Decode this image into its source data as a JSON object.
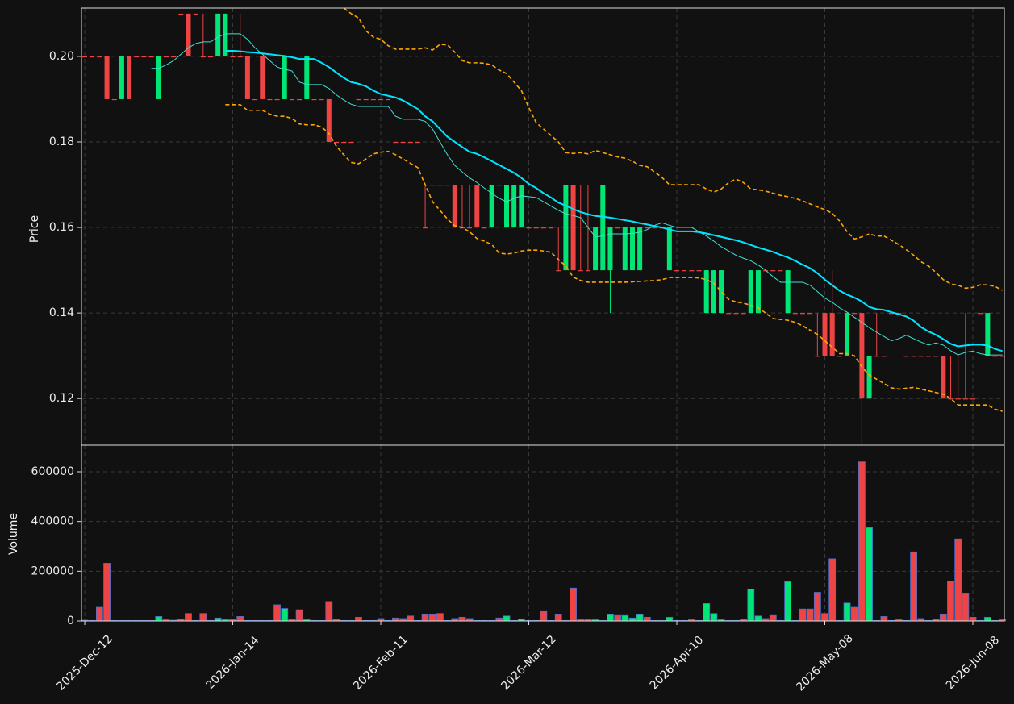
{
  "chart_data": {
    "type": "candlestick",
    "ylabel": "Price",
    "xlim": [
      -0.44,
      124.25
    ],
    "xticks": [
      {
        "value": 0,
        "label": "2025-Dec-12"
      },
      {
        "value": 20,
        "label": "2026-Jan-14"
      },
      {
        "value": 40,
        "label": "2026-Feb-11"
      },
      {
        "value": 60,
        "label": "2026-Mar-12"
      },
      {
        "value": 80,
        "label": "2026-Apr-10"
      },
      {
        "value": 100,
        "label": "2026-May-08"
      },
      {
        "value": 120,
        "label": "2026-Jun-08"
      }
    ],
    "ylim": [
      0.1091,
      0.2113
    ],
    "yticks": [
      0.12,
      0.14,
      0.16,
      0.18,
      {
        "value": 0.2,
        "label": "0.20"
      }
    ],
    "grid": true,
    "up_color": "#00e676",
    "down_color": "#ef4444",
    "open": [
      0.2,
      0.2,
      0.2,
      0.2,
      0.19,
      0.19,
      0.2,
      0.2,
      0.2,
      0.2,
      0.19,
      0.2,
      0.2,
      0.21,
      0.21,
      0.21,
      0.2,
      0.2,
      0.2,
      0.2,
      0.2,
      0.2,
      0.2,
      0.19,
      0.2,
      0.19,
      0.19,
      0.19,
      0.19,
      0.19,
      0.19,
      0.19,
      0.19,
      0.19,
      0.18,
      0.18,
      0.18,
      0.19,
      0.19,
      0.19,
      0.19,
      0.19,
      0.18,
      0.18,
      0.18,
      0.18,
      0.16,
      0.17,
      0.17,
      0.17,
      0.17,
      0.16,
      0.16,
      0.17,
      0.16,
      0.16,
      0.17,
      0.16,
      0.16,
      0.16,
      0.16,
      0.16,
      0.16,
      0.16,
      0.15,
      0.15,
      0.17,
      0.15,
      0.15,
      0.15,
      0.15,
      0.15,
      0.16,
      0.15,
      0.15,
      0.15,
      0.16,
      0.16,
      0.16,
      0.15,
      0.15,
      0.15,
      0.15,
      0.15,
      0.14,
      0.14,
      0.14,
      0.14,
      0.14,
      0.14,
      0.14,
      0.14,
      0.15,
      0.15,
      0.15,
      0.14,
      0.14,
      0.14,
      0.14,
      0.13,
      0.14,
      0.14,
      0.13,
      0.13,
      0.14,
      0.14,
      0.12,
      0.13,
      0.13,
      0.14,
      0.14,
      0.13,
      0.13,
      0.13,
      0.13,
      0.13,
      0.13,
      0.12,
      0.12,
      0.12,
      0.12,
      0.14,
      0.13,
      0.13,
      0.13
    ],
    "high": [
      0.2,
      0.2,
      0.2,
      0.2,
      0.19,
      0.2,
      0.2,
      0.2,
      0.2,
      0.2,
      0.2,
      0.2,
      0.2,
      0.21,
      0.21,
      0.21,
      0.21,
      0.2,
      0.21,
      0.21,
      0.2,
      0.21,
      0.2,
      0.19,
      0.2,
      0.19,
      0.19,
      0.2,
      0.19,
      0.19,
      0.2,
      0.19,
      0.19,
      0.19,
      0.18,
      0.18,
      0.18,
      0.19,
      0.19,
      0.19,
      0.19,
      0.19,
      0.18,
      0.18,
      0.18,
      0.18,
      0.17,
      0.17,
      0.17,
      0.17,
      0.17,
      0.17,
      0.17,
      0.17,
      0.16,
      0.17,
      0.17,
      0.17,
      0.17,
      0.17,
      0.16,
      0.16,
      0.16,
      0.16,
      0.16,
      0.17,
      0.17,
      0.17,
      0.17,
      0.16,
      0.17,
      0.16,
      0.16,
      0.16,
      0.16,
      0.16,
      0.16,
      0.16,
      0.16,
      0.16,
      0.15,
      0.15,
      0.15,
      0.15,
      0.15,
      0.15,
      0.15,
      0.14,
      0.14,
      0.14,
      0.15,
      0.15,
      0.15,
      0.15,
      0.15,
      0.15,
      0.14,
      0.14,
      0.14,
      0.14,
      0.14,
      0.15,
      0.13,
      0.14,
      0.14,
      0.14,
      0.13,
      0.14,
      0.13,
      0.14,
      0.14,
      0.13,
      0.13,
      0.13,
      0.13,
      0.13,
      0.13,
      0.13,
      0.13,
      0.14,
      0.12,
      0.14,
      0.14,
      0.13,
      0.13
    ],
    "low": [
      0.2,
      0.2,
      0.2,
      0.19,
      0.19,
      0.19,
      0.19,
      0.2,
      0.2,
      0.2,
      0.19,
      0.2,
      0.2,
      0.21,
      0.2,
      0.21,
      0.2,
      0.2,
      0.2,
      0.2,
      0.2,
      0.2,
      0.19,
      0.19,
      0.19,
      0.19,
      0.19,
      0.19,
      0.19,
      0.19,
      0.19,
      0.19,
      0.19,
      0.18,
      0.18,
      0.18,
      0.18,
      0.19,
      0.19,
      0.19,
      0.19,
      0.19,
      0.18,
      0.18,
      0.18,
      0.18,
      0.16,
      0.17,
      0.17,
      0.17,
      0.16,
      0.16,
      0.16,
      0.16,
      0.16,
      0.16,
      0.17,
      0.16,
      0.16,
      0.16,
      0.16,
      0.16,
      0.16,
      0.16,
      0.15,
      0.15,
      0.15,
      0.15,
      0.15,
      0.15,
      0.15,
      0.14,
      0.16,
      0.15,
      0.15,
      0.15,
      0.16,
      0.16,
      0.16,
      0.15,
      0.15,
      0.15,
      0.15,
      0.15,
      0.14,
      0.14,
      0.14,
      0.14,
      0.14,
      0.14,
      0.14,
      0.14,
      0.15,
      0.15,
      0.15,
      0.14,
      0.14,
      0.14,
      0.14,
      0.13,
      0.13,
      0.13,
      0.13,
      0.13,
      0.14,
      0.109,
      0.12,
      0.13,
      0.13,
      0.14,
      0.14,
      0.13,
      0.13,
      0.13,
      0.13,
      0.13,
      0.12,
      0.12,
      0.12,
      0.12,
      0.12,
      0.14,
      0.13,
      0.13,
      0.13
    ],
    "close": [
      0.2,
      0.2,
      0.2,
      0.19,
      0.19,
      0.2,
      0.19,
      0.2,
      0.2,
      0.2,
      0.2,
      0.2,
      0.2,
      0.21,
      0.2,
      0.21,
      0.2,
      0.2,
      0.21,
      0.21,
      0.2,
      0.2,
      0.19,
      0.19,
      0.19,
      0.19,
      0.19,
      0.2,
      0.19,
      0.19,
      0.2,
      0.19,
      0.19,
      0.18,
      0.18,
      0.18,
      0.18,
      0.19,
      0.19,
      0.19,
      0.19,
      0.19,
      0.18,
      0.18,
      0.18,
      0.18,
      0.16,
      0.17,
      0.17,
      0.17,
      0.16,
      0.16,
      0.16,
      0.16,
      0.16,
      0.17,
      0.17,
      0.17,
      0.17,
      0.17,
      0.16,
      0.16,
      0.16,
      0.16,
      0.15,
      0.17,
      0.15,
      0.15,
      0.15,
      0.16,
      0.17,
      0.16,
      0.16,
      0.16,
      0.16,
      0.16,
      0.16,
      0.16,
      0.16,
      0.16,
      0.15,
      0.15,
      0.15,
      0.15,
      0.15,
      0.15,
      0.15,
      0.14,
      0.14,
      0.14,
      0.15,
      0.15,
      0.15,
      0.15,
      0.15,
      0.15,
      0.14,
      0.14,
      0.14,
      0.13,
      0.13,
      0.13,
      0.13,
      0.14,
      0.14,
      0.12,
      0.13,
      0.13,
      0.13,
      0.14,
      0.14,
      0.13,
      0.13,
      0.13,
      0.13,
      0.13,
      0.12,
      0.12,
      0.12,
      0.12,
      0.12,
      0.14,
      0.14,
      0.13,
      0.13
    ],
    "lines": [
      {
        "color": "#ffa500",
        "width": 1.6,
        "linestyle": "dashed",
        "values": [
          null,
          null,
          null,
          null,
          null,
          null,
          null,
          null,
          null,
          null,
          null,
          null,
          null,
          null,
          null,
          null,
          null,
          null,
          null,
          0.2141,
          0.2145,
          0.215,
          0.2155,
          0.2158,
          0.216,
          0.216,
          0.2158,
          0.2155,
          0.215,
          0.2145,
          0.214,
          0.2135,
          0.213,
          0.2125,
          0.2118,
          0.2113,
          0.21,
          0.209,
          0.206,
          0.2045,
          0.204,
          0.2025,
          0.2017,
          0.2017,
          0.2017,
          0.2017,
          0.202,
          0.2015,
          0.2028,
          0.2027,
          0.201,
          0.199,
          0.1985,
          0.1985,
          0.1984,
          0.198,
          0.1968,
          0.196,
          0.194,
          0.192,
          0.188,
          0.1845,
          0.183,
          0.1815,
          0.18,
          0.1775,
          0.1773,
          0.1775,
          0.1772,
          0.178,
          0.1775,
          0.177,
          0.1765,
          0.1762,
          0.1755,
          0.1745,
          0.1742,
          0.173,
          0.1717,
          0.17,
          0.17,
          0.17,
          0.17,
          0.17,
          0.169,
          0.1683,
          0.169,
          0.1705,
          0.1713,
          0.1705,
          0.169,
          0.1688,
          0.1685,
          0.168,
          0.1675,
          0.1672,
          0.1668,
          0.1662,
          0.1655,
          0.1648,
          0.1642,
          0.1633,
          0.1615,
          0.159,
          0.1573,
          0.1578,
          0.1585,
          0.158,
          0.158,
          0.157,
          0.156,
          0.1548,
          0.1535,
          0.152,
          0.151,
          0.1495,
          0.1478,
          0.1468,
          0.1465,
          0.1458,
          0.146,
          0.1466,
          0.1466,
          0.1462,
          0.1453
        ]
      },
      {
        "color": "#ffa500",
        "width": 1.6,
        "linestyle": "dashed",
        "values": [
          null,
          null,
          null,
          null,
          null,
          null,
          null,
          null,
          null,
          null,
          null,
          null,
          null,
          null,
          null,
          null,
          null,
          null,
          null,
          0.1887,
          0.1887,
          0.1887,
          0.1874,
          0.1874,
          0.1874,
          0.1865,
          0.186,
          0.186,
          0.1855,
          0.1842,
          0.184,
          0.184,
          0.1835,
          0.182,
          0.179,
          0.177,
          0.1752,
          0.1749,
          0.176,
          0.1772,
          0.1776,
          0.1778,
          0.177,
          0.176,
          0.175,
          0.174,
          0.17,
          0.166,
          0.164,
          0.162,
          0.1604,
          0.16,
          0.159,
          0.1574,
          0.1568,
          0.156,
          0.154,
          0.1538,
          0.154,
          0.1545,
          0.1547,
          0.1547,
          0.1545,
          0.1542,
          0.1525,
          0.151,
          0.1484,
          0.1476,
          0.1472,
          0.1472,
          0.1472,
          0.1472,
          0.1472,
          0.1472,
          0.1473,
          0.1474,
          0.1475,
          0.1476,
          0.1478,
          0.1483,
          0.1483,
          0.1483,
          0.1483,
          0.1482,
          0.1478,
          0.147,
          0.145,
          0.1432,
          0.1426,
          0.1423,
          0.1418,
          0.1412,
          0.14,
          0.1387,
          0.1385,
          0.1383,
          0.1378,
          0.137,
          0.136,
          0.135,
          0.1335,
          0.132,
          0.1305,
          0.1305,
          0.13,
          0.1274,
          0.1255,
          0.1245,
          0.1235,
          0.1225,
          0.1222,
          0.1224,
          0.1226,
          0.1222,
          0.1218,
          0.1214,
          0.121,
          0.12,
          0.1185,
          0.1185,
          0.1185,
          0.1185,
          0.1185,
          0.1175,
          0.117
        ]
      },
      {
        "color": "#40e0d0",
        "width": 1,
        "linestyle": "solid",
        "values": [
          null,
          null,
          null,
          null,
          null,
          null,
          null,
          null,
          null,
          0.1972,
          0.1972,
          0.198,
          0.199,
          0.2005,
          0.202,
          0.203,
          0.2034,
          0.2034,
          0.2045,
          0.2053,
          0.2053,
          0.2053,
          0.204,
          0.202,
          0.2005,
          0.199,
          0.1975,
          0.197,
          0.1966,
          0.194,
          0.1934,
          0.1934,
          0.1934,
          0.1925,
          0.191,
          0.1898,
          0.1888,
          0.1883,
          0.1883,
          0.1883,
          0.1883,
          0.1883,
          0.186,
          0.1853,
          0.1853,
          0.1853,
          0.1848,
          0.183,
          0.18,
          0.177,
          0.1745,
          0.173,
          0.1716,
          0.1705,
          0.1692,
          0.168,
          0.1668,
          0.166,
          0.1668,
          0.1674,
          0.1672,
          0.167,
          0.166,
          0.165,
          0.164,
          0.1632,
          0.1628,
          0.1623,
          0.16,
          0.1578,
          0.158,
          0.1585,
          0.1585,
          0.1585,
          0.1586,
          0.1589,
          0.1595,
          0.1605,
          0.1611,
          0.1605,
          0.16,
          0.16,
          0.16,
          0.159,
          0.158,
          0.1568,
          0.1555,
          0.1545,
          0.1535,
          0.1528,
          0.1522,
          0.1512,
          0.15,
          0.1485,
          0.1472,
          0.1472,
          0.1472,
          0.1472,
          0.1465,
          0.145,
          0.1435,
          0.1425,
          0.1412,
          0.1402,
          0.139,
          0.1378,
          0.1366,
          0.1355,
          0.1345,
          0.1335,
          0.134,
          0.1348,
          0.134,
          0.1332,
          0.1325,
          0.133,
          0.1325,
          0.1312,
          0.1302,
          0.1308,
          0.1311,
          0.1305,
          0.1302,
          0.1302,
          0.1302
        ]
      },
      {
        "color": "#00e5ff",
        "width": 2,
        "linestyle": "solid",
        "values": [
          null,
          null,
          null,
          null,
          null,
          null,
          null,
          null,
          null,
          null,
          null,
          null,
          null,
          null,
          null,
          null,
          null,
          null,
          null,
          0.2013,
          0.2013,
          0.2012,
          0.201,
          0.2009,
          0.2007,
          0.2005,
          0.2003,
          0.2001,
          0.1998,
          0.1994,
          0.1994,
          0.1994,
          0.1985,
          0.1975,
          0.1962,
          0.195,
          0.194,
          0.1936,
          0.193,
          0.192,
          0.1912,
          0.1908,
          0.1904,
          0.1897,
          0.1887,
          0.1877,
          0.186,
          0.1848,
          0.183,
          0.1812,
          0.18,
          0.1788,
          0.1777,
          0.1772,
          0.1764,
          0.1755,
          0.1746,
          0.1737,
          0.1728,
          0.1716,
          0.1702,
          0.1692,
          0.168,
          0.167,
          0.1658,
          0.1651,
          0.1643,
          0.1636,
          0.1631,
          0.1627,
          0.1625,
          0.1623,
          0.162,
          0.1617,
          0.1614,
          0.161,
          0.1607,
          0.1603,
          0.16,
          0.1595,
          0.1591,
          0.1591,
          0.1591,
          0.1589,
          0.1586,
          0.1582,
          0.1578,
          0.1574,
          0.157,
          0.1565,
          0.1559,
          0.1553,
          0.1548,
          0.1543,
          0.1536,
          0.153,
          0.1522,
          0.1513,
          0.1505,
          0.1493,
          0.1478,
          0.1465,
          0.1452,
          0.1443,
          0.1436,
          0.1427,
          0.1414,
          0.1409,
          0.1407,
          0.1402,
          0.1397,
          0.1392,
          0.1382,
          0.1367,
          0.1357,
          0.1349,
          0.1339,
          0.1328,
          0.1322,
          0.1324,
          0.1326,
          0.1326,
          0.1324,
          0.1316,
          0.1311
        ]
      }
    ],
    "volume": {
      "ylabel": "Volume",
      "ylim": [
        0,
        707000
      ],
      "yticks": [
        0,
        200000,
        400000,
        600000
      ],
      "edge_color": "#4a6fd0",
      "values": [
        3000,
        2000,
        55000,
        232000,
        2000,
        2000,
        2000,
        2000,
        2000,
        2000,
        18000,
        5000,
        3000,
        8000,
        30000,
        2000,
        30000,
        2000,
        12000,
        5000,
        5000,
        18000,
        2000,
        2000,
        2000,
        2000,
        65000,
        50000,
        5000,
        45000,
        5000,
        2000,
        2000,
        78000,
        8000,
        2000,
        2000,
        15000,
        2000,
        2000,
        10000,
        2000,
        12000,
        10000,
        20000,
        2000,
        25000,
        25000,
        30000,
        2000,
        10000,
        15000,
        10000,
        2000,
        2000,
        2000,
        12000,
        20000,
        2000,
        8000,
        2000,
        2000,
        38000,
        2000,
        25000,
        2000,
        132000,
        5000,
        5000,
        5000,
        2000,
        25000,
        22000,
        22000,
        12000,
        25000,
        15000,
        2000,
        2000,
        15000,
        2000,
        2000,
        5000,
        2000,
        70000,
        30000,
        5000,
        2000,
        2000,
        8000,
        128000,
        20000,
        10000,
        22000,
        2000,
        158000,
        2000,
        48000,
        48000,
        115000,
        30000,
        250000,
        2000,
        72000,
        55000,
        640000,
        375000,
        2000,
        18000,
        2000,
        5000,
        2000,
        278000,
        10000,
        2000,
        8000,
        25000,
        160000,
        330000,
        112000,
        15000,
        2000,
        15000,
        2000,
        5000
      ]
    }
  }
}
